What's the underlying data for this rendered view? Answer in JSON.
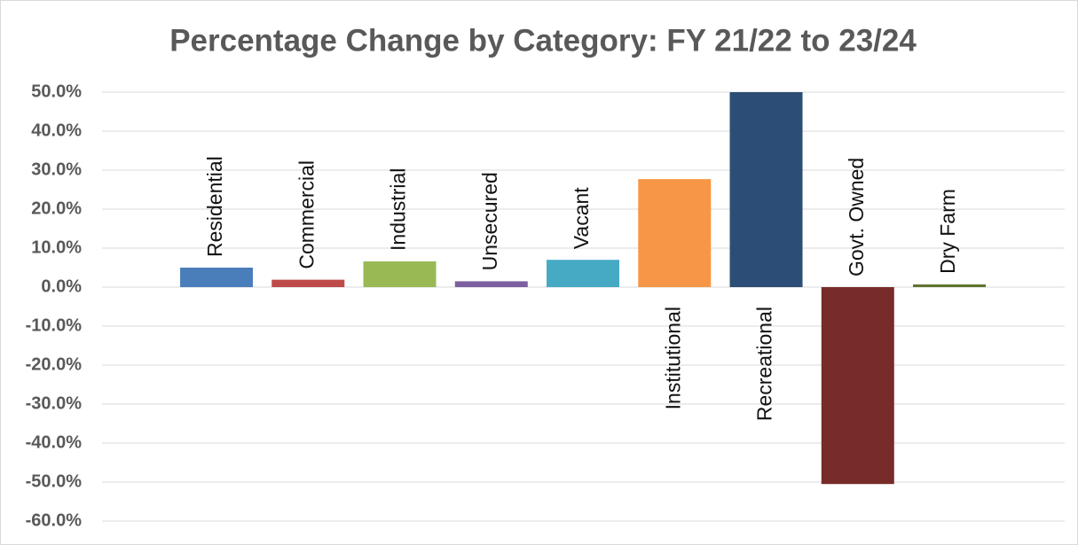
{
  "chart_data": {
    "type": "bar",
    "title": "Percentage Change by Category: FY 21/22 to 23/24",
    "categories": [
      "Residential",
      "Commercial",
      "Industrial",
      "Unsecured",
      "Vacant",
      "Institutional",
      "Recreational",
      "Govt. Owned",
      "Dry Farm"
    ],
    "values": [
      5.0,
      1.9,
      6.6,
      1.5,
      7.0,
      27.7,
      50.0,
      -50.5,
      0.7
    ],
    "colors": [
      "#4a7ebb",
      "#be4b48",
      "#98b954",
      "#7d60a0",
      "#46aac5",
      "#f79646",
      "#2c4d75",
      "#772c2a",
      "#5f7530"
    ],
    "ylim": [
      -60,
      50
    ],
    "yticks": [
      {
        "value": 50,
        "label": "50.0%"
      },
      {
        "value": 40,
        "label": "40.0%"
      },
      {
        "value": 30,
        "label": "30.0%"
      },
      {
        "value": 20,
        "label": "20.0%"
      },
      {
        "value": 10,
        "label": "10.0%"
      },
      {
        "value": 0,
        "label": "0.0%"
      },
      {
        "value": -10,
        "label": "-10.0%"
      },
      {
        "value": -20,
        "label": "-20.0%"
      },
      {
        "value": -30,
        "label": "-30.0%"
      },
      {
        "value": -40,
        "label": "-40.0%"
      },
      {
        "value": -50,
        "label": "-50.0%"
      },
      {
        "value": -60,
        "label": "-60.0%"
      }
    ],
    "grid": true
  }
}
